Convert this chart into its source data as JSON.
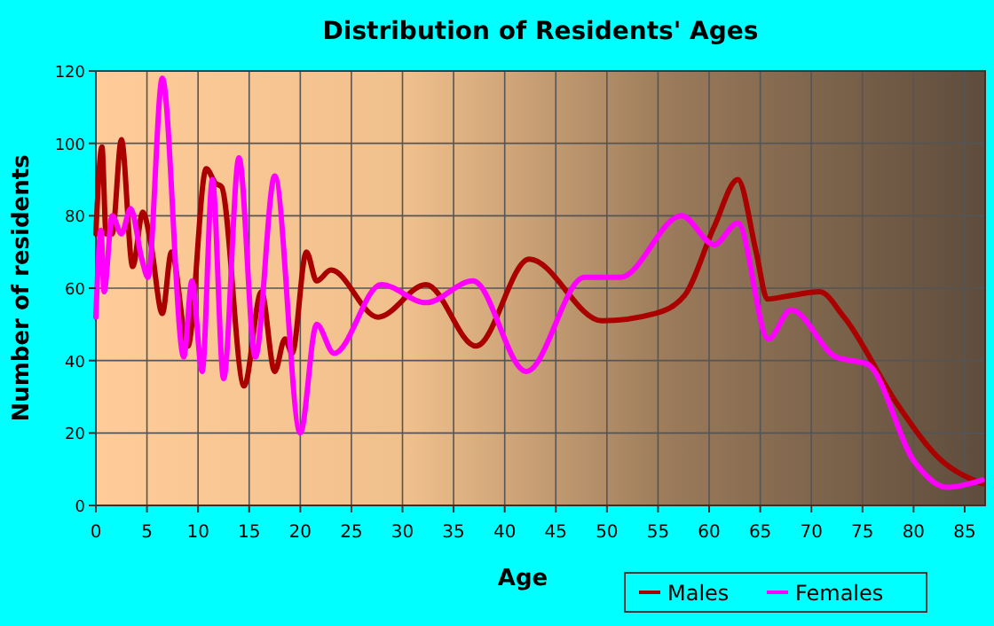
{
  "chart_data": {
    "type": "line",
    "title": "Distribution of Residents' Ages",
    "xlabel": "Age",
    "ylabel": "Number of residents",
    "xlim": [
      0,
      87
    ],
    "xticks": [
      0,
      5,
      10,
      15,
      20,
      25,
      30,
      35,
      40,
      45,
      50,
      55,
      60,
      65,
      70,
      75,
      80,
      85
    ],
    "ylim": [
      0,
      120
    ],
    "yticks": [
      0,
      20,
      40,
      60,
      80,
      100,
      120
    ],
    "grid": true,
    "legend": "bottom right",
    "series": [
      {
        "name": "Males",
        "color": "#aa0000",
        "x": [
          0,
          0.6,
          1,
          1.6,
          2.5,
          3.6,
          4.6,
          5.4,
          6.5,
          7.4,
          9,
          10.8,
          11.7,
          12.3,
          14.5,
          16.2,
          17.5,
          18.5,
          19.2,
          20.6,
          21.6,
          23,
          27.6,
          32.3,
          37.2,
          42.4,
          49.5,
          54.7,
          57.6,
          60.5,
          62.8,
          64.6,
          65.7,
          68,
          70.8,
          73.2,
          78.4,
          82.5,
          86.7
        ],
        "values": [
          75,
          99,
          75,
          75,
          101,
          66,
          81,
          72,
          53,
          70,
          44,
          93,
          89,
          88,
          33,
          59,
          37,
          46,
          42,
          70,
          62,
          65,
          52,
          61,
          44,
          68,
          51,
          53,
          58,
          77,
          90,
          70,
          57,
          58,
          59,
          52,
          28,
          13,
          6
        ]
      },
      {
        "name": "Females",
        "color": "#ff00ff",
        "x": [
          0,
          0.5,
          0.8,
          1.6,
          2.5,
          3.4,
          4.5,
          5.1,
          6.5,
          8.6,
          9.4,
          10.4,
          11.4,
          12.5,
          14,
          15.6,
          17.5,
          20,
          21.6,
          23.3,
          27.9,
          32.3,
          36.9,
          42.1,
          47.8,
          51.3,
          57.3,
          60.5,
          62.8,
          65.8,
          68,
          72.4,
          75.5,
          80.1,
          83.3,
          86.7
        ],
        "values": [
          52,
          76,
          59,
          80,
          75,
          82,
          68,
          63,
          118,
          41,
          62,
          37,
          90,
          35,
          96,
          41,
          91,
          20,
          50,
          42,
          61,
          56,
          62,
          37,
          63,
          63,
          80,
          72,
          78,
          46,
          54,
          41,
          39,
          12,
          5,
          7
        ]
      }
    ]
  }
}
